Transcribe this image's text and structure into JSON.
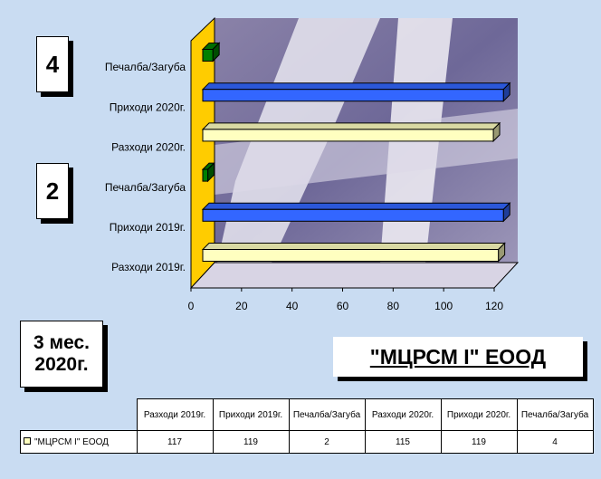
{
  "chart_data": {
    "type": "bar",
    "orientation": "horizontal",
    "title": "\"МЦРСМ I\" ЕООД",
    "categories": [
      "Разходи 2019г.",
      "Приходи 2019г.",
      "Печалба/Загуба",
      "Разходи 2020г.",
      "Приходи 2020г.",
      "Печалба/Загуба"
    ],
    "series": [
      {
        "name": "\"МЦРСМ I\" ЕООД",
        "color": "#ffffc0",
        "values": [
          117,
          119,
          2,
          115,
          119,
          4
        ],
        "colors": [
          "#ffffc0",
          "#3366ff",
          "#008000",
          "#ffffc0",
          "#3366ff",
          "#008000"
        ]
      }
    ],
    "xlim": [
      0,
      120
    ],
    "xticks": [
      0,
      20,
      40,
      60,
      80,
      100,
      120
    ]
  },
  "annotations": [
    "4",
    "2",
    "3 мес. 2020г."
  ]
}
